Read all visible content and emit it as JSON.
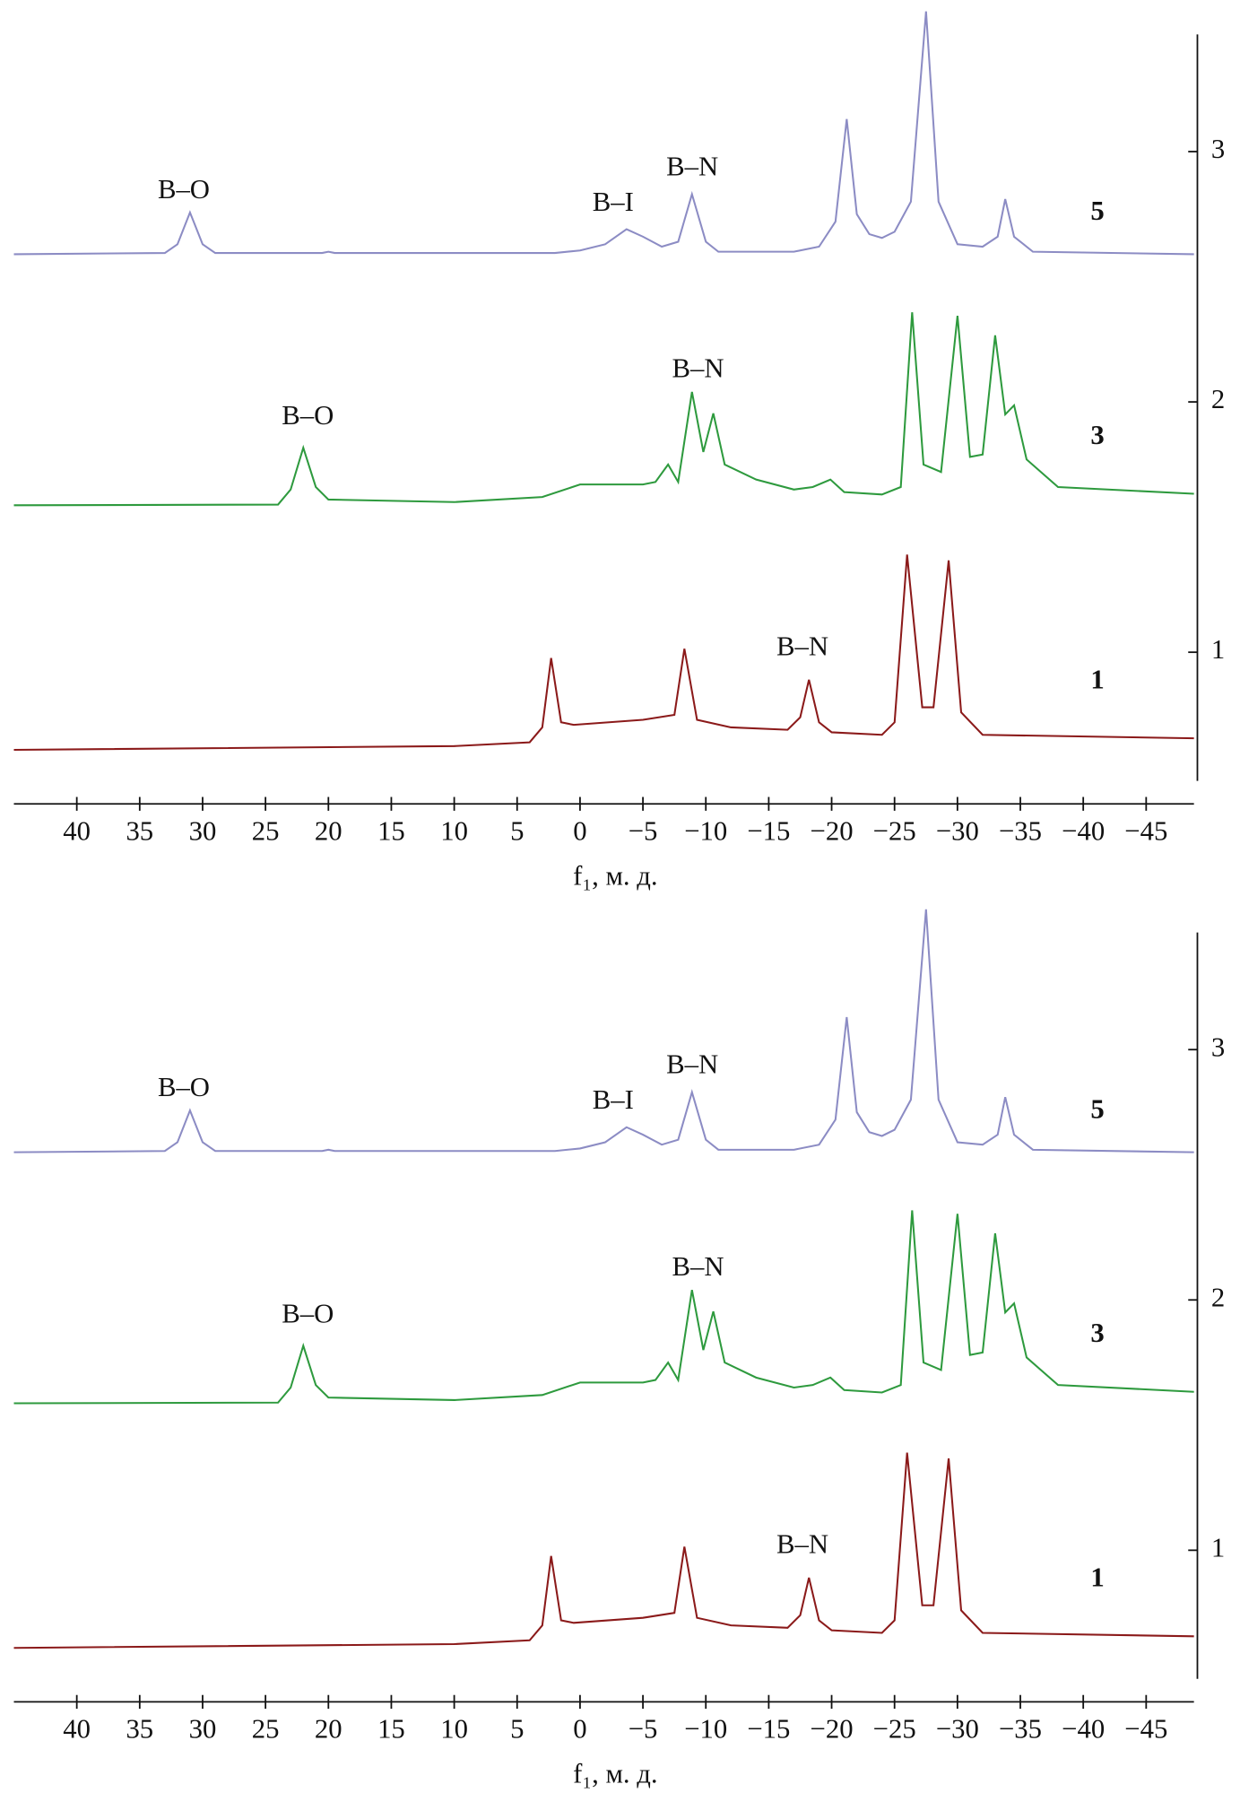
{
  "chart_data": [
    {
      "type": "line",
      "x_label": "f₁, м. д.",
      "xlim": [
        45,
        -48.8
      ],
      "xticks": [
        40,
        35,
        30,
        25,
        20,
        15,
        10,
        5,
        0,
        {
          "value": -5,
          "label": "−5"
        },
        {
          "value": -10,
          "label": "−10"
        },
        {
          "value": -15,
          "label": "−15"
        },
        {
          "value": -20,
          "label": "−20"
        },
        {
          "value": -25,
          "label": "−25"
        },
        {
          "value": -30,
          "label": "−30"
        },
        {
          "value": -35,
          "label": "−35"
        },
        {
          "value": -40,
          "label": "−40"
        },
        {
          "value": -45,
          "label": "−45"
        }
      ],
      "ylim": [
        0.486,
        3.468
      ],
      "yticks": [
        1,
        2,
        3
      ],
      "series": [
        {
          "name": "5",
          "color": "#8c8cc4",
          "x": [
            45,
            33,
            32,
            31,
            30,
            29,
            20.5,
            20,
            19.5,
            2,
            0,
            -2,
            -3.7,
            -5,
            -6.5,
            -7.8,
            -8.9,
            -10,
            -11,
            -17,
            -19,
            -20.3,
            -21.2,
            -22,
            -23,
            -24,
            -25,
            -26.3,
            -27.5,
            -28.5,
            -30,
            -32,
            -33.2,
            -33.8,
            -34.5,
            -36,
            -48.8
          ],
          "values": [
            2.59,
            2.595,
            2.63,
            2.757,
            2.63,
            2.595,
            2.595,
            2.6,
            2.595,
            2.595,
            2.605,
            2.63,
            2.69,
            2.66,
            2.62,
            2.64,
            2.83,
            2.64,
            2.6,
            2.6,
            2.62,
            2.72,
            3.13,
            2.75,
            2.67,
            2.655,
            2.68,
            2.8,
            3.56,
            2.8,
            2.63,
            2.62,
            2.66,
            2.81,
            2.66,
            2.6,
            2.59
          ],
          "annotations": [
            "B–O",
            "B–I",
            "B–N"
          ]
        },
        {
          "name": "3",
          "color": "#2e9a3e",
          "x": [
            45,
            24,
            23,
            22,
            21,
            20,
            10,
            3,
            0,
            -1,
            -5,
            -6,
            -7,
            -7.8,
            -8.9,
            -9.8,
            -10.6,
            -11.5,
            -14,
            -17,
            -18.5,
            -19.9,
            -21,
            -24,
            -25.5,
            -26.4,
            -27.3,
            -28.7,
            -30,
            -31,
            -32,
            -33,
            -33.8,
            -34.5,
            -35.5,
            -38,
            -48.8
          ],
          "values": [
            1.587,
            1.59,
            1.65,
            1.817,
            1.66,
            1.61,
            1.6,
            1.62,
            1.67,
            1.67,
            1.67,
            1.68,
            1.75,
            1.68,
            2.04,
            1.8,
            1.954,
            1.75,
            1.69,
            1.65,
            1.66,
            1.69,
            1.64,
            1.63,
            1.66,
            2.358,
            1.75,
            1.72,
            2.344,
            1.78,
            1.79,
            2.266,
            1.95,
            1.986,
            1.77,
            1.66,
            1.633
          ],
          "annotations": [
            "B–N",
            "B–O"
          ]
        },
        {
          "name": "1",
          "color": "#8b1a1a",
          "x": [
            45,
            10,
            4,
            3,
            2.3,
            1.5,
            0.5,
            -5,
            -7.5,
            -8.3,
            -9.3,
            -12,
            -16.5,
            -17.5,
            -18.2,
            -19,
            -20,
            -24,
            -25,
            -26,
            -27.2,
            -28.1,
            -29.3,
            -30.3,
            -32,
            -48.8
          ],
          "values": [
            0.61,
            0.625,
            0.64,
            0.7,
            0.977,
            0.72,
            0.71,
            0.73,
            0.75,
            1.014,
            0.73,
            0.7,
            0.69,
            0.74,
            0.89,
            0.72,
            0.68,
            0.67,
            0.72,
            1.39,
            0.78,
            0.78,
            1.367,
            0.76,
            0.67,
            0.656
          ],
          "annotations": [
            "B–N"
          ]
        }
      ]
    },
    {
      "type": "line",
      "x_label": "f₁, м. д.",
      "xlim": [
        45,
        -48.8
      ],
      "xticks": [
        40,
        35,
        30,
        25,
        20,
        15,
        10,
        5,
        0,
        {
          "value": -5,
          "label": "−5"
        },
        {
          "value": -10,
          "label": "−10"
        },
        {
          "value": -15,
          "label": "−15"
        },
        {
          "value": -20,
          "label": "−20"
        },
        {
          "value": -25,
          "label": "−25"
        },
        {
          "value": -30,
          "label": "−30"
        },
        {
          "value": -35,
          "label": "−35"
        },
        {
          "value": -40,
          "label": "−40"
        },
        {
          "value": -45,
          "label": "−45"
        }
      ],
      "ylim": [
        0.486,
        3.468
      ],
      "yticks": [
        1,
        2,
        3
      ],
      "series": [
        {
          "name": "5",
          "color": "#8c8cc4",
          "x": [
            45,
            33,
            32,
            31,
            30,
            29,
            20.5,
            20,
            19.5,
            2,
            0,
            -2,
            -3.7,
            -5,
            -6.5,
            -7.8,
            -8.9,
            -10,
            -11,
            -17,
            -19,
            -20.3,
            -21.2,
            -22,
            -23,
            -24,
            -25,
            -26.3,
            -27.5,
            -28.5,
            -30,
            -32,
            -33.2,
            -33.8,
            -34.5,
            -36,
            -48.8
          ],
          "values": [
            2.59,
            2.595,
            2.63,
            2.757,
            2.63,
            2.595,
            2.595,
            2.6,
            2.595,
            2.595,
            2.605,
            2.63,
            2.69,
            2.66,
            2.62,
            2.64,
            2.83,
            2.64,
            2.6,
            2.6,
            2.62,
            2.72,
            3.13,
            2.75,
            2.67,
            2.655,
            2.68,
            2.8,
            3.56,
            2.8,
            2.63,
            2.62,
            2.66,
            2.81,
            2.66,
            2.6,
            2.59
          ],
          "annotations": [
            "B–O",
            "B–I",
            "B–N"
          ]
        },
        {
          "name": "3",
          "color": "#2e9a3e",
          "x": [
            45,
            24,
            23,
            22,
            21,
            20,
            10,
            3,
            0,
            -1,
            -5,
            -6,
            -7,
            -7.8,
            -8.9,
            -9.8,
            -10.6,
            -11.5,
            -14,
            -17,
            -18.5,
            -19.9,
            -21,
            -24,
            -25.5,
            -26.4,
            -27.3,
            -28.7,
            -30,
            -31,
            -32,
            -33,
            -33.8,
            -34.5,
            -35.5,
            -38,
            -48.8
          ],
          "values": [
            1.587,
            1.59,
            1.65,
            1.817,
            1.66,
            1.61,
            1.6,
            1.62,
            1.67,
            1.67,
            1.67,
            1.68,
            1.75,
            1.68,
            2.04,
            1.8,
            1.954,
            1.75,
            1.69,
            1.65,
            1.66,
            1.69,
            1.64,
            1.63,
            1.66,
            2.358,
            1.75,
            1.72,
            2.344,
            1.78,
            1.79,
            2.266,
            1.95,
            1.986,
            1.77,
            1.66,
            1.633
          ],
          "annotations": [
            "B–N",
            "B–O"
          ]
        },
        {
          "name": "1",
          "color": "#8b1a1a",
          "x": [
            45,
            10,
            4,
            3,
            2.3,
            1.5,
            0.5,
            -5,
            -7.5,
            -8.3,
            -9.3,
            -12,
            -16.5,
            -17.5,
            -18.2,
            -19,
            -20,
            -24,
            -25,
            -26,
            -27.2,
            -28.1,
            -29.3,
            -30.3,
            -32,
            -48.8
          ],
          "values": [
            0.61,
            0.625,
            0.64,
            0.7,
            0.977,
            0.72,
            0.71,
            0.73,
            0.75,
            1.014,
            0.73,
            0.7,
            0.69,
            0.74,
            0.89,
            0.72,
            0.68,
            0.67,
            0.72,
            1.39,
            0.78,
            0.78,
            1.367,
            0.76,
            0.67,
            0.656
          ],
          "annotations": [
            "B–N"
          ]
        }
      ]
    }
  ]
}
